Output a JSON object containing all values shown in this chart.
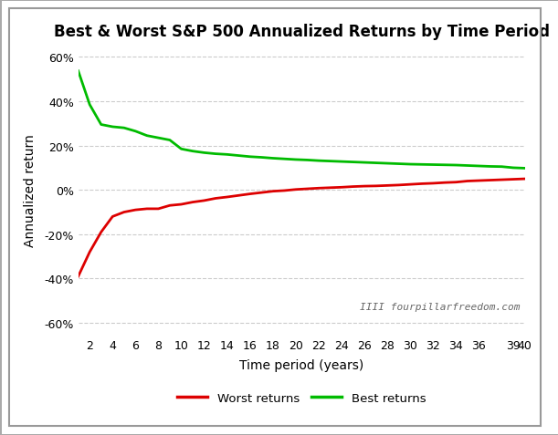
{
  "title": "Best & Worst S&P 500 Annualized Returns by Time Period",
  "xlabel": "Time period (years)",
  "ylabel": "Annualized return",
  "x": [
    1,
    2,
    3,
    4,
    5,
    6,
    7,
    8,
    9,
    10,
    11,
    12,
    13,
    14,
    15,
    16,
    17,
    18,
    19,
    20,
    21,
    22,
    23,
    24,
    25,
    26,
    27,
    28,
    29,
    30,
    31,
    32,
    33,
    34,
    35,
    36,
    37,
    38,
    39,
    40
  ],
  "best": [
    0.537,
    0.385,
    0.295,
    0.285,
    0.28,
    0.265,
    0.245,
    0.235,
    0.225,
    0.185,
    0.175,
    0.168,
    0.163,
    0.16,
    0.155,
    0.15,
    0.147,
    0.143,
    0.14,
    0.137,
    0.135,
    0.132,
    0.13,
    0.128,
    0.126,
    0.124,
    0.122,
    0.12,
    0.118,
    0.116,
    0.115,
    0.114,
    0.113,
    0.112,
    0.11,
    0.108,
    0.106,
    0.105,
    0.1,
    0.098
  ],
  "worst": [
    -0.39,
    -0.28,
    -0.19,
    -0.12,
    -0.1,
    -0.09,
    -0.085,
    -0.085,
    -0.07,
    -0.065,
    -0.055,
    -0.048,
    -0.038,
    -0.032,
    -0.025,
    -0.018,
    -0.012,
    -0.006,
    -0.003,
    0.002,
    0.005,
    0.008,
    0.01,
    0.012,
    0.015,
    0.017,
    0.018,
    0.02,
    0.022,
    0.025,
    0.028,
    0.03,
    0.033,
    0.035,
    0.04,
    0.042,
    0.044,
    0.046,
    0.048,
    0.05
  ],
  "best_color": "#00bb00",
  "worst_color": "#dd0000",
  "background_color": "#ffffff",
  "grid_color": "#cccccc",
  "yticks": [
    -0.6,
    -0.4,
    -0.2,
    0.0,
    0.2,
    0.4,
    0.6
  ],
  "xticks": [
    2,
    4,
    6,
    8,
    10,
    12,
    14,
    16,
    18,
    20,
    22,
    24,
    26,
    28,
    30,
    32,
    34,
    36,
    39,
    40
  ],
  "ylim": [
    -0.65,
    0.65
  ],
  "xlim": [
    1,
    40
  ],
  "watermark": "IIII fourpillarfreedom.com",
  "legend_worst": "Worst returns",
  "legend_best": "Best returns",
  "title_fontsize": 12,
  "label_fontsize": 10,
  "tick_fontsize": 9,
  "line_width": 2.0
}
